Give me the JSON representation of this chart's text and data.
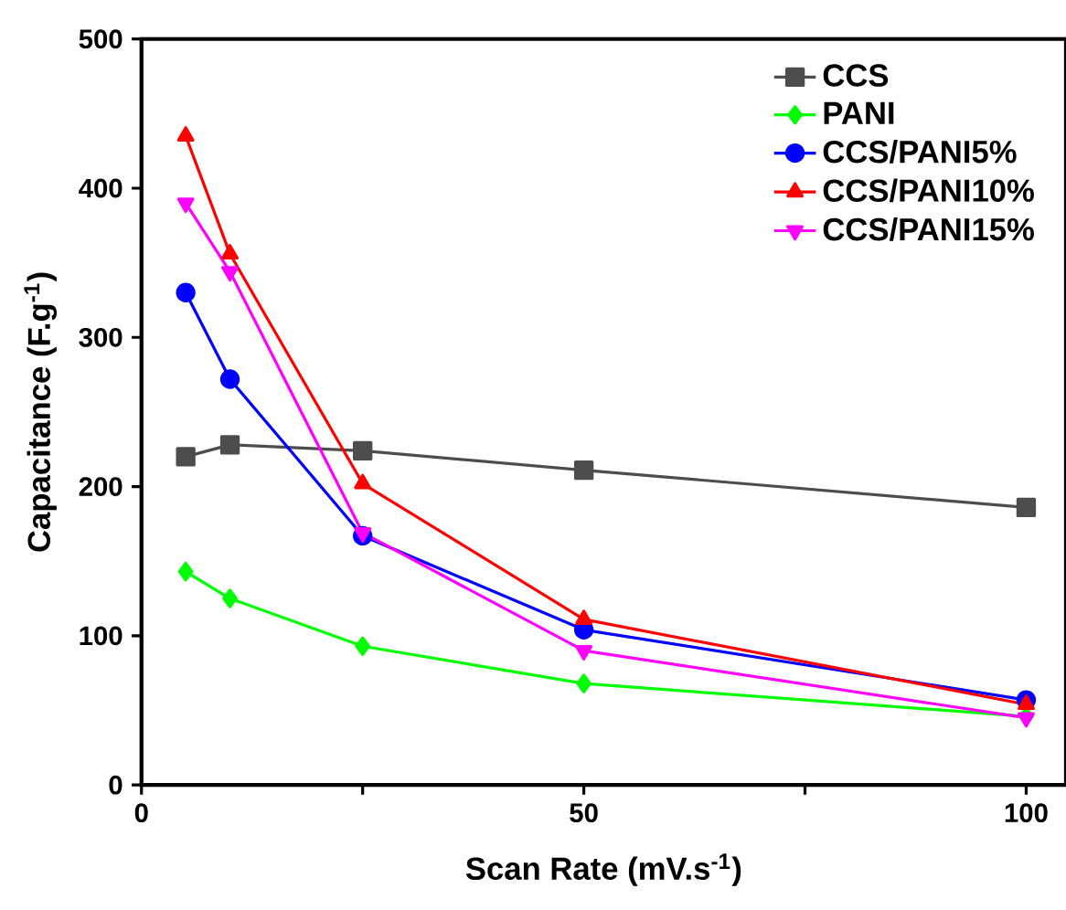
{
  "chart_data": {
    "type": "line",
    "xlabel": "Scan Rate (mV.s$^{-1}$)",
    "ylabel": "Capacitance (F.g$^{-1}$)",
    "x": [
      5,
      10,
      25,
      50,
      100
    ],
    "xlim": [
      0,
      104.5
    ],
    "xticks": [
      0,
      {
        "value": 25,
        "label": null
      },
      50,
      {
        "value": 75,
        "label": null
      },
      100
    ],
    "ylim": [
      0,
      500
    ],
    "yticks": [
      0,
      100,
      200,
      300,
      400,
      500
    ],
    "line_style": "solid",
    "legend": "top right",
    "grid": false,
    "series": [
      {
        "name": "CCS",
        "color": "#4d4d4d",
        "marker": "square",
        "values": [
          220,
          228,
          224,
          211,
          186
        ]
      },
      {
        "name": "PANI",
        "color": "#00ff00",
        "marker": "diamond",
        "values": [
          143,
          125,
          93,
          68,
          46
        ]
      },
      {
        "name": "CCS/PANI5%",
        "color": "#0000ff",
        "marker": "circle",
        "values": [
          330,
          272,
          167,
          104,
          57
        ]
      },
      {
        "name": "CCS/PANI10%",
        "color": "#ff0000",
        "marker": "triangle",
        "values": [
          435,
          356,
          202,
          111,
          54
        ]
      },
      {
        "name": "CCS/PANI15%",
        "color": "#ff00ff",
        "marker": "triangle down",
        "values": [
          390,
          344,
          169,
          90,
          45
        ]
      }
    ]
  }
}
